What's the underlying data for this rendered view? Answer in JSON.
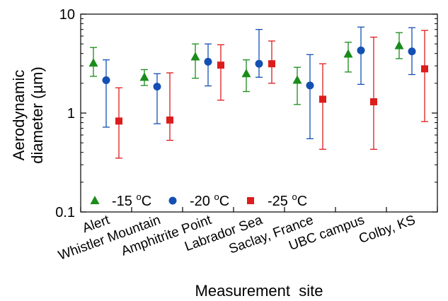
{
  "chart_data": {
    "type": "scatter",
    "y_scale": "log",
    "ylim": [
      0.1,
      10
    ],
    "ylabel_line1": "Aerodynamic",
    "ylabel_line2": "diameter (µm)",
    "xlabel": "Measurement  site",
    "yticks": [
      {
        "value": 0.1,
        "label": "0.1"
      },
      {
        "value": 1,
        "label": "1"
      },
      {
        "value": 10,
        "label": "10"
      }
    ],
    "categories": [
      "Alert",
      "Whistler Mountain",
      "Amphitrite Point",
      "Labrador Sea",
      "Saclay, France",
      "UBC campus",
      "Colby, KS"
    ],
    "legend_position": "bottom-left",
    "grid": false,
    "series": [
      {
        "name": "-15 °C",
        "name_prefix": "-15 ",
        "name_sup": "o",
        "name_suffix": "C",
        "color": "#1a8c1a",
        "marker": "triangle",
        "values": [
          3.2,
          2.3,
          3.7,
          2.5,
          2.15,
          3.95,
          4.8
        ],
        "upper": [
          4.6,
          2.75,
          5.0,
          3.45,
          2.9,
          5.2,
          6.5
        ],
        "lower": [
          2.35,
          1.9,
          2.25,
          1.65,
          1.22,
          2.6,
          3.55
        ]
      },
      {
        "name": "-20 °C",
        "name_prefix": "-20 ",
        "name_sup": "o",
        "name_suffix": "C",
        "color": "#1450b4",
        "marker": "circle",
        "values": [
          2.15,
          1.85,
          3.3,
          3.15,
          1.9,
          4.3,
          4.2
        ],
        "upper": [
          3.45,
          2.5,
          5.0,
          7.0,
          3.9,
          7.4,
          7.3
        ],
        "lower": [
          0.72,
          0.78,
          1.88,
          2.3,
          0.55,
          1.95,
          2.45
        ]
      },
      {
        "name": "-25 °C",
        "name_prefix": "-25 ",
        "name_sup": "o",
        "name_suffix": "C",
        "color": "#dd1c1c",
        "marker": "square",
        "values": [
          0.83,
          0.85,
          3.05,
          3.15,
          1.38,
          1.3,
          2.8
        ],
        "upper": [
          1.8,
          2.55,
          4.9,
          5.35,
          3.15,
          5.85,
          6.85
        ],
        "lower": [
          0.35,
          0.53,
          1.35,
          2.0,
          0.43,
          0.43,
          0.82
        ]
      }
    ]
  }
}
